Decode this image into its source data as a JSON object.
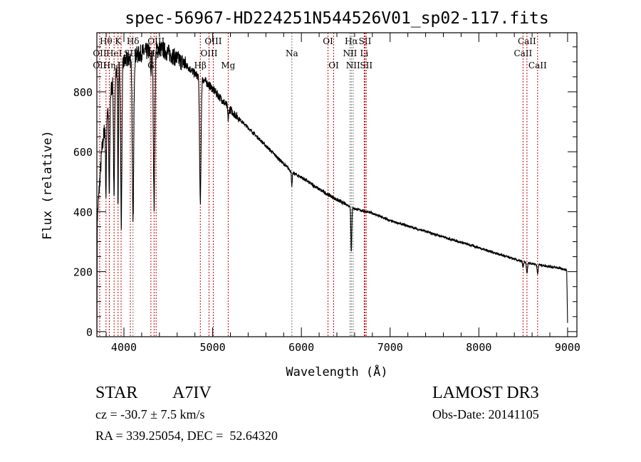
{
  "chart_data": {
    "type": "line",
    "title": "spec-56967-HD224251N544526V01_sp02-117.fits",
    "xlabel": "Wavelength (Å)",
    "ylabel": "Flux (relative)",
    "xlim": [
      3695,
      9105
    ],
    "ylim": [
      -17,
      997
    ],
    "x_ticks": [
      4000,
      5000,
      6000,
      7000,
      8000,
      9000
    ],
    "x_tick_labels": [
      "4000",
      "5000",
      "6000",
      "7000",
      "8000",
      "9000"
    ],
    "x_minor_step": 200,
    "y_ticks": [
      0,
      200,
      400,
      600,
      800
    ],
    "y_tick_labels": [
      "0",
      "200",
      "400",
      "600",
      "800"
    ],
    "y_minor_step": 50,
    "grid": false,
    "series": [
      {
        "name": "spectrum",
        "color": "#000000",
        "continuum": [
          [
            3696,
            20
          ],
          [
            3700,
            380
          ],
          [
            3750,
            600
          ],
          [
            3800,
            720
          ],
          [
            3850,
            800
          ],
          [
            3900,
            860
          ],
          [
            4000,
            900
          ],
          [
            4200,
            930
          ],
          [
            4400,
            945
          ],
          [
            4500,
            930
          ],
          [
            4600,
            910
          ],
          [
            4700,
            890
          ],
          [
            4800,
            860
          ],
          [
            4900,
            840
          ],
          [
            5000,
            810
          ],
          [
            5200,
            740
          ],
          [
            5400,
            680
          ],
          [
            5600,
            620
          ],
          [
            5800,
            560
          ],
          [
            5900,
            530
          ],
          [
            6000,
            515
          ],
          [
            6200,
            475
          ],
          [
            6400,
            440
          ],
          [
            6600,
            410
          ],
          [
            6800,
            395
          ],
          [
            7000,
            370
          ],
          [
            7500,
            325
          ],
          [
            8000,
            280
          ],
          [
            8500,
            232
          ],
          [
            8900,
            212
          ],
          [
            8990,
            205
          ],
          [
            9000,
            30
          ]
        ],
        "absorption": [
          [
            3798,
            260,
            5
          ],
          [
            3835,
            320,
            6
          ],
          [
            3889,
            420,
            6
          ],
          [
            3934,
            470,
            4
          ],
          [
            3970,
            520,
            7
          ],
          [
            4102,
            560,
            8
          ],
          [
            4304,
            70,
            6
          ],
          [
            4340,
            520,
            8
          ],
          [
            4861,
            420,
            8
          ],
          [
            5175,
            40,
            6
          ],
          [
            5893,
            45,
            5
          ],
          [
            6563,
            150,
            5
          ],
          [
            8498,
            20,
            5
          ],
          [
            8542,
            35,
            6
          ],
          [
            8662,
            30,
            6
          ]
        ]
      }
    ],
    "line_marks_color": "#cc0000",
    "line_marks": [
      {
        "label": "Hθ",
        "wave": 3798,
        "row": 1,
        "color": "#cc0000"
      },
      {
        "label": "K",
        "wave": 3934,
        "row": 1,
        "color": "#cc0000"
      },
      {
        "label": "Hδ",
        "wave": 4102,
        "row": 1,
        "color": "#777777"
      },
      {
        "label": "OIII",
        "wave": 4363,
        "row": 1,
        "color": "#cc0000"
      },
      {
        "label": "OIII",
        "wave": 5007,
        "row": 1,
        "color": "#cc0000"
      },
      {
        "label": "OI",
        "wave": 6300,
        "row": 1,
        "color": "#cc0000"
      },
      {
        "label": "Hα",
        "wave": 6563,
        "row": 1,
        "color": "#777777"
      },
      {
        "label": "SII",
        "wave": 6717,
        "row": 1,
        "color": "#cc0000"
      },
      {
        "label": "CaII",
        "wave": 8542,
        "row": 1,
        "color": "#cc0000"
      },
      {
        "label": "OII",
        "wave": 3727,
        "row": 2,
        "color": "#cc0000"
      },
      {
        "label": "HeI",
        "wave": 3889,
        "row": 2,
        "color": "#cc0000"
      },
      {
        "label": "SII",
        "wave": 4072,
        "row": 2,
        "color": "#cc0000"
      },
      {
        "label": "Hγ",
        "wave": 4340,
        "row": 2,
        "color": "#cc0000"
      },
      {
        "label": "OIII",
        "wave": 4959,
        "row": 2,
        "color": "#cc0000"
      },
      {
        "label": "Na",
        "wave": 5893,
        "row": 2,
        "color": "#777777"
      },
      {
        "label": "NII",
        "wave": 6548,
        "row": 2,
        "color": "#777777"
      },
      {
        "label": "Li",
        "wave": 6708,
        "row": 2,
        "color": "#cc0000"
      },
      {
        "label": "CaII",
        "wave": 8498,
        "row": 2,
        "color": "#cc0000"
      },
      {
        "label": "OII",
        "wave": 3727,
        "row": 3,
        "color": "#cc0000"
      },
      {
        "label": "Hη",
        "wave": 3835,
        "row": 3,
        "color": "#cc0000"
      },
      {
        "label": "H",
        "wave": 3968,
        "row": 3,
        "color": "#cc0000"
      },
      {
        "label": "G",
        "wave": 4304,
        "row": 3,
        "color": "#cc0000"
      },
      {
        "label": "Hβ",
        "wave": 4861,
        "row": 3,
        "color": "#cc0000"
      },
      {
        "label": "Mg",
        "wave": 5175,
        "row": 3,
        "color": "#cc0000"
      },
      {
        "label": "OI",
        "wave": 6364,
        "row": 3,
        "color": "#cc0000"
      },
      {
        "label": "NII",
        "wave": 6583,
        "row": 3,
        "color": "#777777"
      },
      {
        "label": "SII",
        "wave": 6731,
        "row": 3,
        "color": "#cc0000"
      },
      {
        "label": "CaII",
        "wave": 8662,
        "row": 3,
        "color": "#cc0000"
      }
    ]
  },
  "info": {
    "object_type": "STAR",
    "subclass": "A7IV",
    "cz": "cz = -30.7 ± 7.5 km/s",
    "coords": "RA = 339.25054, DEC =  52.64320",
    "survey": "LAMOST DR3",
    "obs_date": "Obs-Date: 20141105"
  }
}
